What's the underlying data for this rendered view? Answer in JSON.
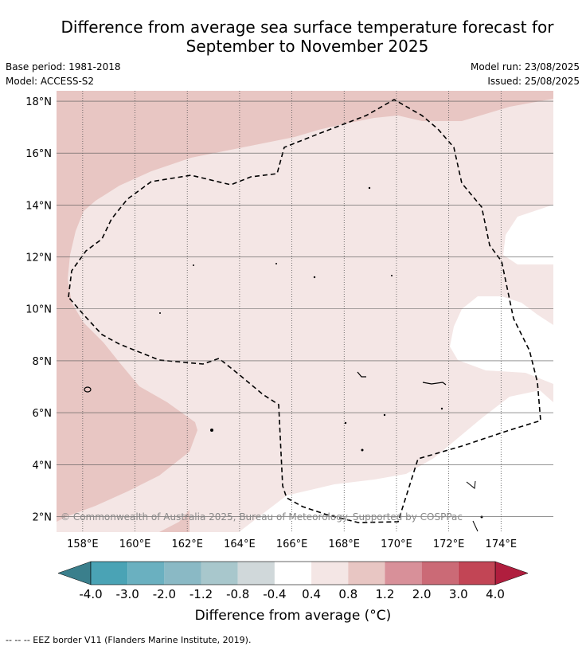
{
  "title_line1": "Difference from average sea surface temperature forecast for",
  "title_line2": "September to November 2025",
  "base_period": "Base period: 1981-2018",
  "model": "Model: ACCESS-S2",
  "model_run": "Model run: 23/08/2025",
  "issued": "Issued: 25/08/2025",
  "copyright": "© Commonwealth of Australia 2025, Bureau of Meteorology. Supported by COSPPac",
  "colorbar_title": "Difference from average (°C)",
  "footer": "-- -- -- EEZ border V11 (Flanders Marine Institute, 2019).",
  "colors": {
    "c_m4_below": "#3a7f8c",
    "c_m4_m3": "#4aa3b5",
    "c_m3_m2": "#6ab0c0",
    "c_m2_m12": "#8ab9c5",
    "c_m12_m08": "#a8c7cc",
    "c_m08_m04": "#d0d8da",
    "c_m04_04": "#ffffff",
    "c_04_08": "#f4e6e5",
    "c_08_12": "#e8c6c3",
    "c_12_20": "#d89099",
    "c_20_30": "#cb6a76",
    "c_30_40": "#c24555",
    "c_above_4": "#b01e3e"
  },
  "chart_data": {
    "type": "heatmap",
    "title": "Difference from average sea surface temperature forecast for September to November 2025",
    "x_range": [
      157,
      176
    ],
    "y_range": [
      1.4,
      18.4
    ],
    "x_ticks": [
      158,
      160,
      162,
      164,
      166,
      168,
      170,
      172,
      174
    ],
    "x_tick_labels": [
      "158°E",
      "160°E",
      "162°E",
      "164°E",
      "166°E",
      "168°E",
      "170°E",
      "172°E",
      "174°E"
    ],
    "y_ticks": [
      2,
      4,
      6,
      8,
      10,
      12,
      14,
      16,
      18
    ],
    "y_tick_labels": [
      "2°N",
      "4°N",
      "6°N",
      "8°N",
      "10°N",
      "12°N",
      "14°N",
      "16°N",
      "18°N"
    ],
    "colorbar_boundaries": [
      "-4.0",
      "-3.0",
      "-2.0",
      "-1.2",
      "-0.8",
      "-0.4",
      "0.4",
      "0.8",
      "1.2",
      "2.0",
      "3.0",
      "4.0"
    ],
    "colorbar_label": "Difference from average (°C)",
    "regions": [
      {
        "range": "0.8 to 1.2",
        "area": "northwest and southwest"
      },
      {
        "range": "0.4 to 0.8",
        "area": "central"
      },
      {
        "range": "-0.4 to 0.4",
        "area": "east and south"
      }
    ],
    "grid": true
  }
}
